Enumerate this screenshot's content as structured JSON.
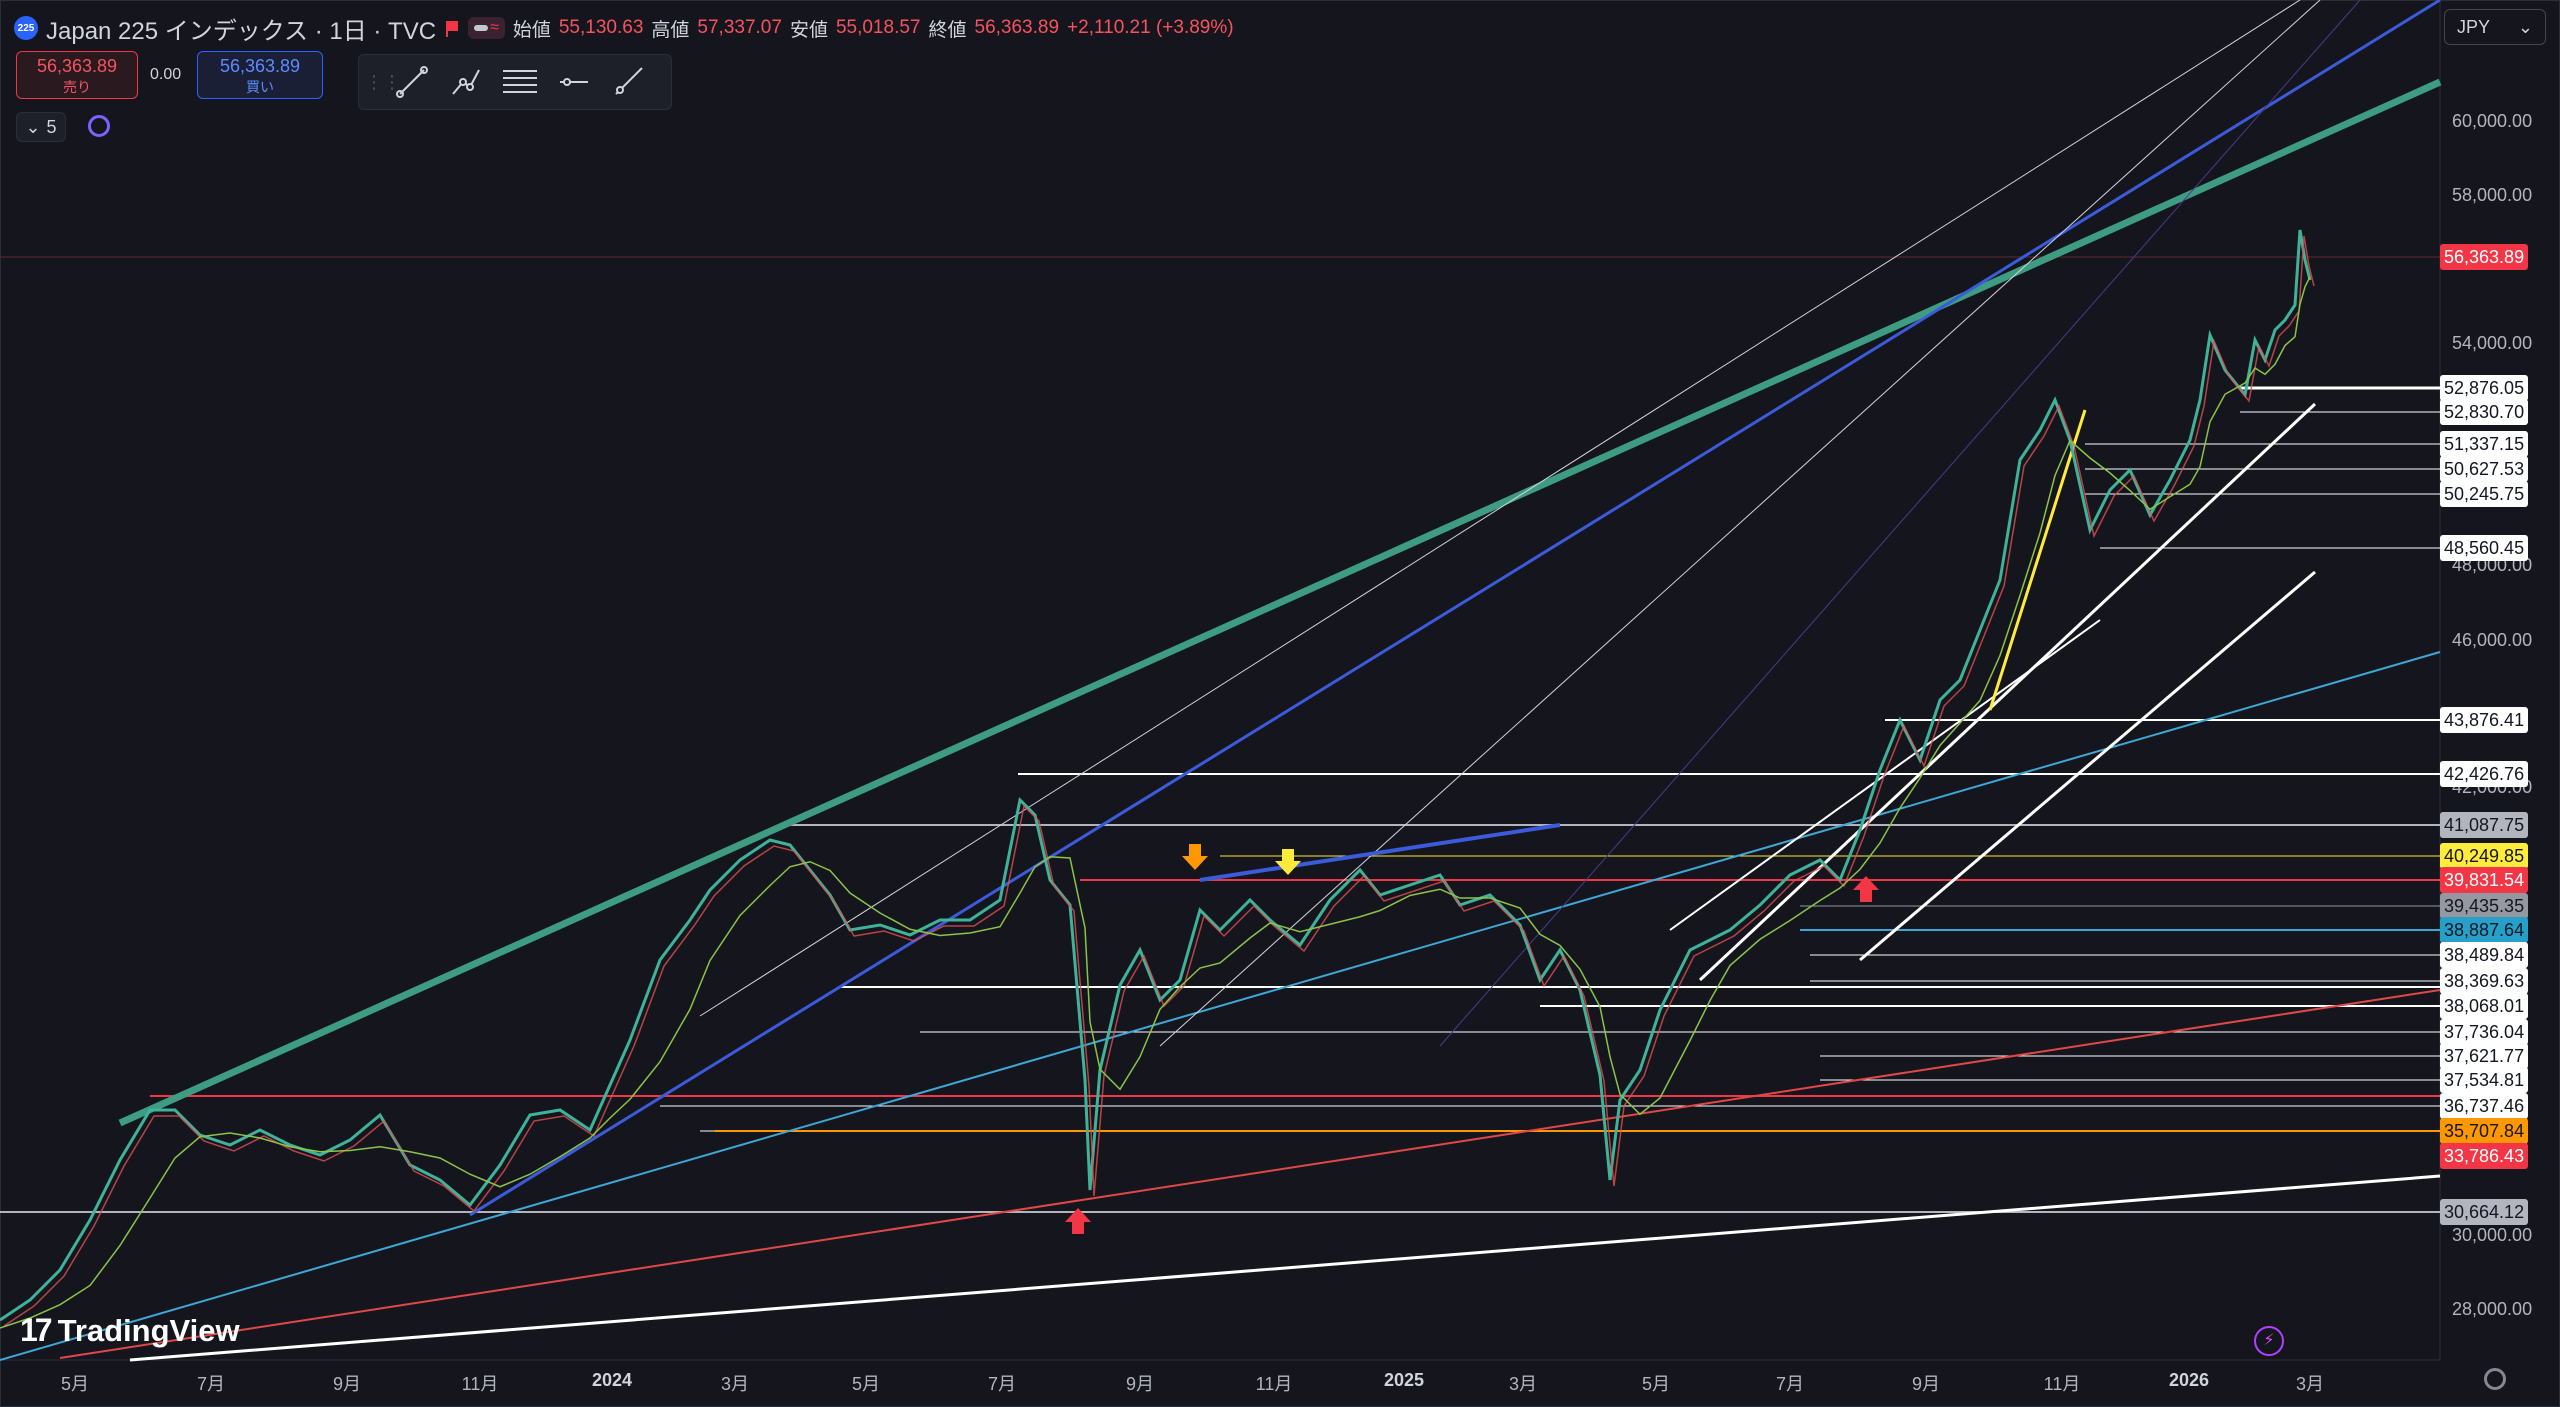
{
  "header": {
    "symbol_badge": "225",
    "title": "Japan 225 インデックス · 1日 · TVC",
    "open_label": "始値",
    "open": "55,130.63",
    "high_label": "高値",
    "high": "57,337.07",
    "low_label": "安値",
    "low": "55,018.57",
    "close_label": "終値",
    "close": "56,363.89",
    "change": "+2,110.21 (+3.89%)"
  },
  "trade": {
    "sell_price": "56,363.89",
    "sell_label": "売り",
    "spread": "0.00",
    "buy_price": "56,363.89",
    "buy_label": "買い"
  },
  "toolbar": {
    "icons": [
      "trend-line-icon",
      "path-icon",
      "fib-icon",
      "horizontal-line-icon",
      "ray-icon"
    ]
  },
  "indicators_collapse": {
    "count": "5"
  },
  "currency": {
    "value": "JPY"
  },
  "price_axis": {
    "ticks": [
      "60,000.00",
      "58,000.00",
      "54,000.00",
      "48,000.00",
      "46,000.00",
      "42,000.00",
      "30,000.00",
      "28,000.00"
    ],
    "tick_values": [
      60000,
      58000,
      54000,
      48000,
      46000,
      42000,
      30000,
      28000
    ]
  },
  "price_labels": [
    {
      "text": "56,363.89",
      "bg": "#f23645",
      "fg": "#ffffff"
    },
    {
      "text": "52,876.05",
      "bg": "#ffffff",
      "fg": "#131722"
    },
    {
      "text": "52,830.70",
      "bg": "#ffffff",
      "fg": "#131722"
    },
    {
      "text": "51,337.15",
      "bg": "#ffffff",
      "fg": "#131722"
    },
    {
      "text": "50,627.53",
      "bg": "#ffffff",
      "fg": "#131722"
    },
    {
      "text": "50,245.75",
      "bg": "#ffffff",
      "fg": "#131722"
    },
    {
      "text": "48,560.45",
      "bg": "#ffffff",
      "fg": "#131722"
    },
    {
      "text": "43,876.41",
      "bg": "#ffffff",
      "fg": "#131722"
    },
    {
      "text": "42,426.76",
      "bg": "#ffffff",
      "fg": "#131722"
    },
    {
      "text": "41,087.75",
      "bg": "#b2b5be",
      "fg": "#131722"
    },
    {
      "text": "40,249.85",
      "bg": "#ffeb3b",
      "fg": "#131722"
    },
    {
      "text": "39,831.54",
      "bg": "#f23645",
      "fg": "#ffffff"
    },
    {
      "text": "39,435.35",
      "bg": "#9598a1",
      "fg": "#131722"
    },
    {
      "text": "38,887.64",
      "bg": "#26a0c8",
      "fg": "#131722"
    },
    {
      "text": "38,489.84",
      "bg": "#ffffff",
      "fg": "#131722"
    },
    {
      "text": "38,369.63",
      "bg": "#ffffff",
      "fg": "#131722"
    },
    {
      "text": "38,068.01",
      "bg": "#ffffff",
      "fg": "#131722"
    },
    {
      "text": "37,736.04",
      "bg": "#ffffff",
      "fg": "#131722"
    },
    {
      "text": "37,621.77",
      "bg": "#ffffff",
      "fg": "#131722"
    },
    {
      "text": "37,534.81",
      "bg": "#ffffff",
      "fg": "#131722"
    },
    {
      "text": "36,737.46",
      "bg": "#ffffff",
      "fg": "#131722"
    },
    {
      "text": "35,707.84",
      "bg": "#ff9800",
      "fg": "#131722"
    },
    {
      "text": "33,786.43",
      "bg": "#f23645",
      "fg": "#ffffff"
    },
    {
      "text": "30,664.12",
      "bg": "#b2b5be",
      "fg": "#131722"
    }
  ],
  "time_axis": {
    "ticks": [
      "5月",
      "7月",
      "9月",
      "11月",
      "2024",
      "3月",
      "5月",
      "7月",
      "9月",
      "11月",
      "2025",
      "3月",
      "5月",
      "7月",
      "9月",
      "11月",
      "2026",
      "3月"
    ]
  },
  "brand": {
    "name": "TradingView"
  },
  "colors": {
    "background": "#15161d",
    "up": "#26a69a",
    "down": "#ef5350",
    "green_line": "#3d9c82",
    "blue_line": "#3b5bdb",
    "cyan_line": "#3fa7d6",
    "red_line": "#e04848"
  }
}
